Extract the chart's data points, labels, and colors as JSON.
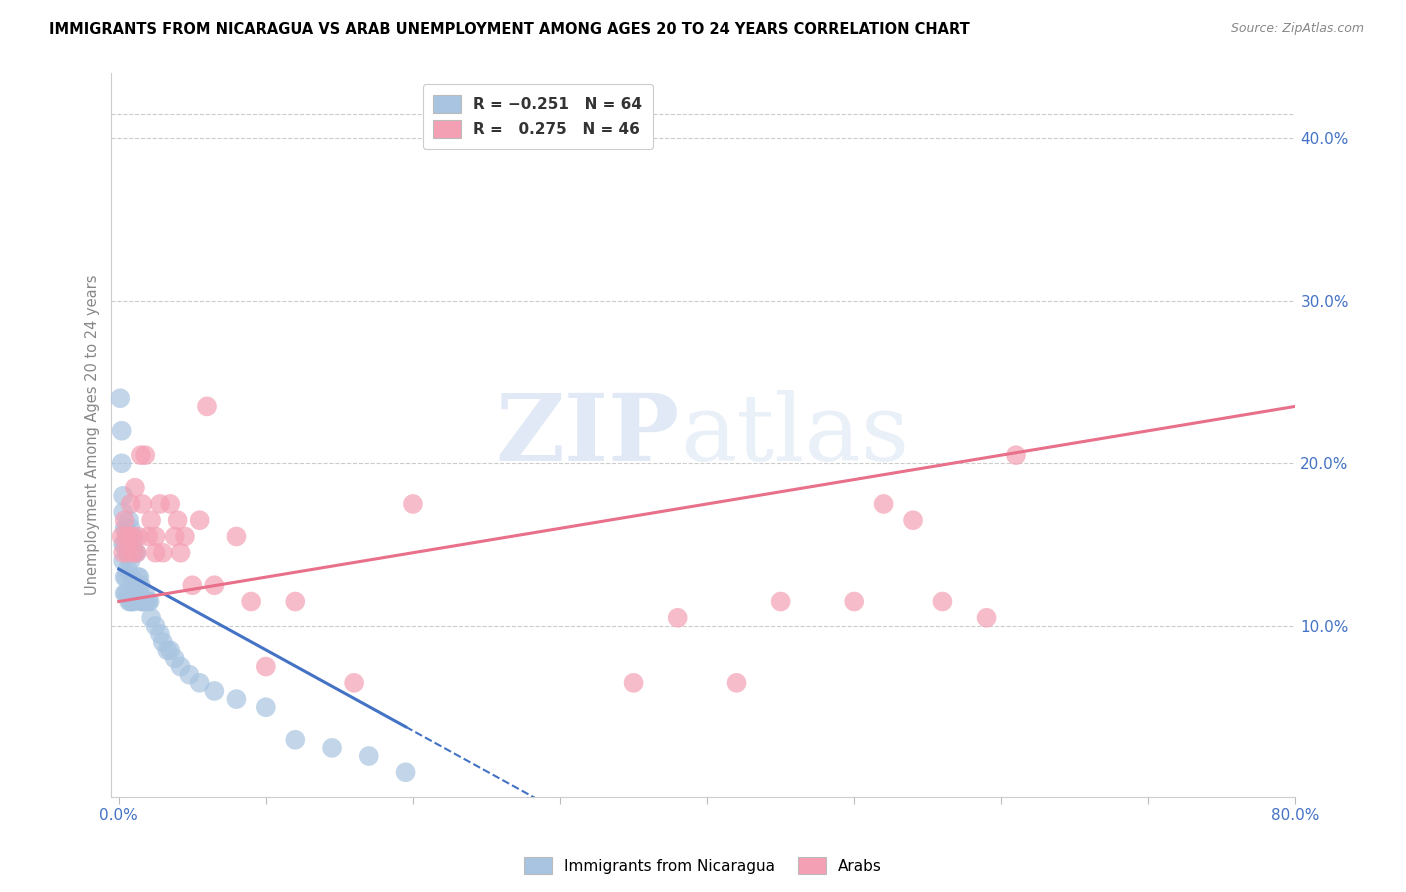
{
  "title": "IMMIGRANTS FROM NICARAGUA VS ARAB UNEMPLOYMENT AMONG AGES 20 TO 24 YEARS CORRELATION CHART",
  "source": "Source: ZipAtlas.com",
  "ylabel": "Unemployment Among Ages 20 to 24 years",
  "xlim": [
    -0.005,
    0.8
  ],
  "ylim": [
    -0.005,
    0.44
  ],
  "xticks": [
    0.0,
    0.1,
    0.2,
    0.3,
    0.4,
    0.5,
    0.6,
    0.7,
    0.8
  ],
  "xticklabels": [
    "0.0%",
    "",
    "",
    "",
    "",
    "",
    "",
    "",
    "80.0%"
  ],
  "yticks_right": [
    0.1,
    0.2,
    0.3,
    0.4
  ],
  "ytick_right_labels": [
    "10.0%",
    "20.0%",
    "30.0%",
    "40.0%"
  ],
  "nicaragua_color": "#a8c4e0",
  "arab_color": "#f4a0b4",
  "nicaragua_line_color": "#4472c4",
  "arab_line_color": "#e8708a",
  "watermark_zip": "ZIP",
  "watermark_atlas": "atlas",
  "nicaragua_x": [
    0.001,
    0.002,
    0.002,
    0.003,
    0.003,
    0.003,
    0.003,
    0.004,
    0.004,
    0.004,
    0.004,
    0.005,
    0.005,
    0.005,
    0.005,
    0.006,
    0.006,
    0.006,
    0.006,
    0.007,
    0.007,
    0.007,
    0.008,
    0.008,
    0.008,
    0.009,
    0.009,
    0.009,
    0.01,
    0.01,
    0.01,
    0.011,
    0.011,
    0.012,
    0.012,
    0.013,
    0.013,
    0.014,
    0.014,
    0.015,
    0.015,
    0.016,
    0.017,
    0.018,
    0.019,
    0.02,
    0.021,
    0.022,
    0.025,
    0.028,
    0.03,
    0.033,
    0.035,
    0.038,
    0.042,
    0.048,
    0.055,
    0.065,
    0.08,
    0.1,
    0.12,
    0.145,
    0.17,
    0.195
  ],
  "nicaragua_y": [
    0.24,
    0.22,
    0.2,
    0.18,
    0.17,
    0.15,
    0.14,
    0.16,
    0.15,
    0.13,
    0.12,
    0.16,
    0.15,
    0.13,
    0.12,
    0.155,
    0.145,
    0.135,
    0.12,
    0.165,
    0.15,
    0.115,
    0.16,
    0.14,
    0.115,
    0.15,
    0.13,
    0.115,
    0.155,
    0.145,
    0.115,
    0.145,
    0.125,
    0.145,
    0.125,
    0.13,
    0.12,
    0.13,
    0.12,
    0.125,
    0.115,
    0.115,
    0.115,
    0.12,
    0.115,
    0.115,
    0.115,
    0.105,
    0.1,
    0.095,
    0.09,
    0.085,
    0.085,
    0.08,
    0.075,
    0.07,
    0.065,
    0.06,
    0.055,
    0.05,
    0.03,
    0.025,
    0.02,
    0.01
  ],
  "arab_x": [
    0.002,
    0.003,
    0.004,
    0.005,
    0.006,
    0.007,
    0.008,
    0.009,
    0.01,
    0.011,
    0.012,
    0.013,
    0.015,
    0.016,
    0.018,
    0.02,
    0.022,
    0.025,
    0.025,
    0.028,
    0.03,
    0.035,
    0.038,
    0.04,
    0.042,
    0.045,
    0.05,
    0.055,
    0.06,
    0.065,
    0.08,
    0.09,
    0.1,
    0.12,
    0.16,
    0.2,
    0.35,
    0.38,
    0.42,
    0.45,
    0.5,
    0.52,
    0.54,
    0.56,
    0.59,
    0.61
  ],
  "arab_y": [
    0.155,
    0.145,
    0.165,
    0.155,
    0.145,
    0.155,
    0.175,
    0.155,
    0.145,
    0.185,
    0.145,
    0.155,
    0.205,
    0.175,
    0.205,
    0.155,
    0.165,
    0.155,
    0.145,
    0.175,
    0.145,
    0.175,
    0.155,
    0.165,
    0.145,
    0.155,
    0.125,
    0.165,
    0.235,
    0.125,
    0.155,
    0.115,
    0.075,
    0.115,
    0.065,
    0.175,
    0.065,
    0.105,
    0.065,
    0.115,
    0.115,
    0.175,
    0.165,
    0.115,
    0.105,
    0.205
  ],
  "nic_line_x0": 0.0,
  "nic_line_y0": 0.135,
  "nic_line_x1": 0.195,
  "nic_line_y1": 0.038,
  "nic_line_solid_end": 0.195,
  "nic_line_dash_end": 0.36,
  "arab_line_x0": 0.0,
  "arab_line_y0": 0.115,
  "arab_line_x1": 0.8,
  "arab_line_y1": 0.235
}
